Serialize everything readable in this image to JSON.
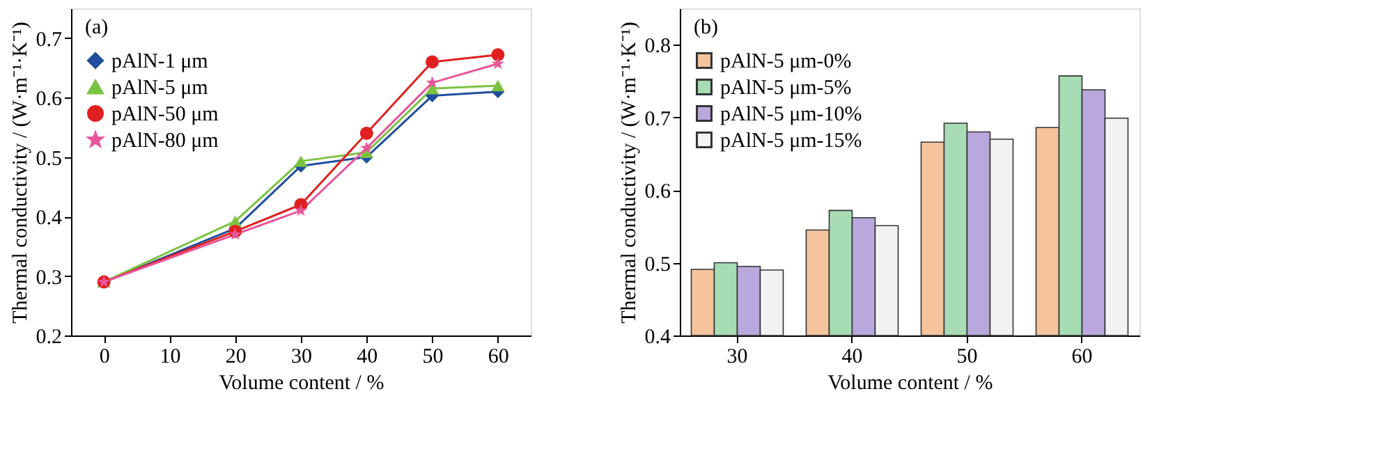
{
  "chart_data": [
    {
      "type": "line",
      "annotations": [
        "(a)"
      ],
      "xlabel": "Volume content / %",
      "ylabel": "Thermal conductivity / (W·m⁻¹·K⁻¹)",
      "x": [
        0,
        20,
        30,
        40,
        50,
        60
      ],
      "xlim": [
        -5,
        65
      ],
      "xticks": [
        0,
        10,
        20,
        30,
        40,
        50,
        60
      ],
      "ylim": [
        0.2,
        0.75
      ],
      "yticks": [
        0.2,
        0.3,
        0.4,
        0.5,
        0.6,
        0.7
      ],
      "grid": false,
      "legend": "top left",
      "series": [
        {
          "name": "pAlN-1 μm",
          "color": "#1f4e9c",
          "marker": "diamond",
          "values": [
            0.29,
            0.38,
            0.485,
            0.5,
            0.603,
            0.61
          ]
        },
        {
          "name": "pAlN-5 μm",
          "color": "#7cc242",
          "marker": "triangle",
          "values": [
            0.29,
            0.392,
            0.493,
            0.508,
            0.615,
            0.62
          ]
        },
        {
          "name": "pAlN-50 μm",
          "color": "#e02020",
          "marker": "circle",
          "values": [
            0.29,
            0.375,
            0.42,
            0.54,
            0.66,
            0.672
          ]
        },
        {
          "name": "pAlN-80 μm",
          "color": "#e8559a",
          "marker": "star",
          "values": [
            0.29,
            0.37,
            0.41,
            0.515,
            0.625,
            0.657
          ]
        }
      ]
    },
    {
      "type": "bar",
      "annotations": [
        "(b)"
      ],
      "xlabel": "Volume content / %",
      "ylabel": "Thermal conductivity / (W·m⁻¹·K⁻¹)",
      "categories": [
        "30",
        "40",
        "50",
        "60"
      ],
      "ylim": [
        0.4,
        0.85
      ],
      "yticks": [
        0.4,
        0.5,
        0.6,
        0.7,
        0.8
      ],
      "grid": false,
      "legend": "top left",
      "series": [
        {
          "name": "pAlN-5 μm-0%",
          "color": "#f5c49c",
          "values": [
            0.491,
            0.545,
            0.666,
            0.686
          ]
        },
        {
          "name": "pAlN-5 μm-5%",
          "color": "#a8dcb4",
          "values": [
            0.5,
            0.572,
            0.692,
            0.757
          ]
        },
        {
          "name": "pAlN-5 μm-10%",
          "color": "#b9a8dc",
          "values": [
            0.495,
            0.562,
            0.68,
            0.738
          ]
        },
        {
          "name": "pAlN-5 μm-15%",
          "color": "#f2f2f2",
          "values": [
            0.49,
            0.551,
            0.67,
            0.699
          ]
        }
      ]
    }
  ]
}
